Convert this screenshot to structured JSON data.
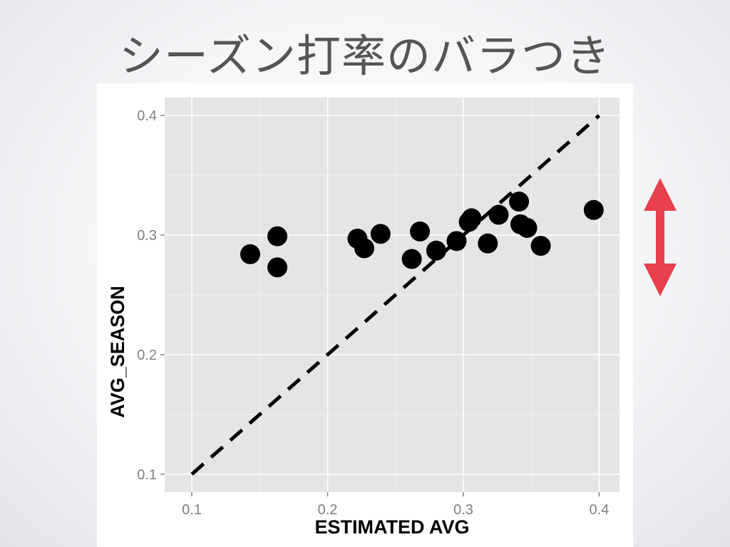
{
  "slide": {
    "title": "シーズン打率のバラつき"
  },
  "annotation": {
    "arrow_color": "#e8414b"
  },
  "chart_data": {
    "type": "scatter",
    "title": "",
    "xlabel": "ESTIMATED AVG",
    "ylabel": "AVG_SEASON",
    "xlim": [
      0.08,
      0.415
    ],
    "ylim": [
      0.085,
      0.415
    ],
    "x_ticks": [
      0.1,
      0.2,
      0.3,
      0.4
    ],
    "y_ticks": [
      0.1,
      0.2,
      0.3,
      0.4
    ],
    "x_tick_labels": [
      "0.1",
      "0.2",
      "0.3",
      "0.4"
    ],
    "y_tick_labels": [
      "0.1",
      "0.2",
      "0.3",
      "0.4"
    ],
    "grid": true,
    "panel_color": "#e5e5e5",
    "point_color": "#000000",
    "reference_line": {
      "style": "dashed",
      "from": [
        0.1,
        0.1
      ],
      "to": [
        0.4,
        0.4
      ]
    },
    "points": [
      {
        "x": 0.143,
        "y": 0.284
      },
      {
        "x": 0.163,
        "y": 0.299
      },
      {
        "x": 0.163,
        "y": 0.273
      },
      {
        "x": 0.222,
        "y": 0.297
      },
      {
        "x": 0.227,
        "y": 0.289
      },
      {
        "x": 0.239,
        "y": 0.301
      },
      {
        "x": 0.262,
        "y": 0.28
      },
      {
        "x": 0.268,
        "y": 0.303
      },
      {
        "x": 0.28,
        "y": 0.287
      },
      {
        "x": 0.295,
        "y": 0.295
      },
      {
        "x": 0.304,
        "y": 0.311
      },
      {
        "x": 0.306,
        "y": 0.314
      },
      {
        "x": 0.318,
        "y": 0.293
      },
      {
        "x": 0.326,
        "y": 0.317
      },
      {
        "x": 0.341,
        "y": 0.328
      },
      {
        "x": 0.342,
        "y": 0.309
      },
      {
        "x": 0.347,
        "y": 0.306
      },
      {
        "x": 0.357,
        "y": 0.291
      },
      {
        "x": 0.396,
        "y": 0.321
      }
    ]
  }
}
